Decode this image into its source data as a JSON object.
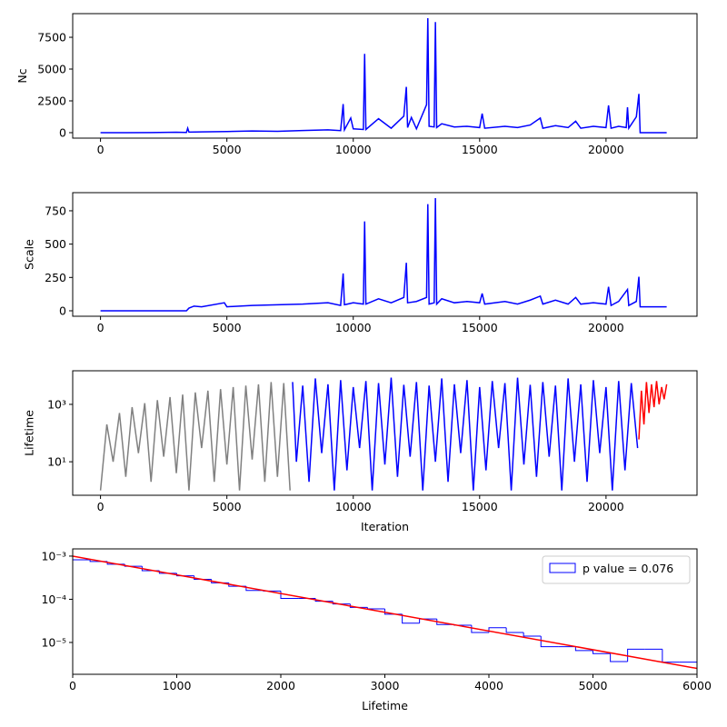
{
  "chart_data": [
    {
      "type": "line",
      "ylabel": "Nc",
      "xlim": [
        -1100,
        23600
      ],
      "ylim": [
        -430,
        9360
      ],
      "xticks": [
        0,
        5000,
        10000,
        15000,
        20000
      ],
      "yticks": [
        0,
        2500,
        5000,
        7500
      ],
      "series": [
        {
          "color": "#0000ff",
          "x": [
            0,
            1000,
            2000,
            3000,
            3400,
            3450,
            3500,
            4000,
            5000,
            6000,
            7000,
            8000,
            9000,
            9500,
            9600,
            9650,
            9900,
            10000,
            10400,
            10450,
            10500,
            11000,
            11500,
            12000,
            12100,
            12150,
            12300,
            12500,
            12900,
            12950,
            13000,
            13200,
            13250,
            13300,
            13500,
            14000,
            14500,
            15000,
            15100,
            15200,
            16000,
            16500,
            17000,
            17400,
            17500,
            18000,
            18500,
            18800,
            19000,
            19500,
            20000,
            20100,
            20200,
            20500,
            20800,
            20850,
            20900,
            21200,
            21300,
            21350,
            22400
          ],
          "values": [
            0,
            0,
            10,
            30,
            20,
            350,
            40,
            60,
            90,
            130,
            110,
            170,
            220,
            160,
            2250,
            220,
            1150,
            300,
            250,
            6200,
            250,
            1100,
            350,
            1300,
            3600,
            400,
            1200,
            300,
            2200,
            9000,
            500,
            450,
            8700,
            400,
            700,
            450,
            500,
            400,
            1500,
            350,
            500,
            400,
            600,
            1150,
            350,
            550,
            400,
            900,
            350,
            500,
            400,
            2150,
            350,
            500,
            400,
            2000,
            350,
            1250,
            3050,
            0,
            0
          ]
        }
      ]
    },
    {
      "type": "line",
      "ylabel": "Scale",
      "xlim": [
        -1100,
        23600
      ],
      "ylim": [
        -41,
        886
      ],
      "xticks": [
        0,
        5000,
        10000,
        15000,
        20000
      ],
      "yticks": [
        0,
        250,
        500,
        750
      ],
      "series": [
        {
          "color": "#0000ff",
          "x": [
            0,
            3400,
            3500,
            3700,
            4000,
            4900,
            5000,
            6000,
            7000,
            8000,
            9000,
            9500,
            9600,
            9650,
            10000,
            10400,
            10450,
            10500,
            11000,
            11500,
            12000,
            12100,
            12150,
            12500,
            12900,
            12950,
            13000,
            13200,
            13250,
            13300,
            13500,
            14000,
            14500,
            15000,
            15100,
            15200,
            16000,
            16500,
            17000,
            17400,
            17500,
            18000,
            18500,
            18800,
            19000,
            19500,
            20000,
            20100,
            20200,
            20500,
            20850,
            20900,
            21200,
            21300,
            21350,
            22400
          ],
          "values": [
            0,
            0,
            20,
            35,
            30,
            60,
            30,
            40,
            45,
            50,
            60,
            40,
            280,
            45,
            60,
            50,
            670,
            50,
            90,
            60,
            100,
            360,
            60,
            70,
            100,
            800,
            50,
            60,
            845,
            50,
            90,
            60,
            70,
            60,
            130,
            50,
            70,
            50,
            80,
            110,
            50,
            80,
            50,
            100,
            50,
            60,
            50,
            180,
            40,
            70,
            160,
            40,
            70,
            255,
            30,
            30
          ]
        }
      ]
    },
    {
      "type": "line",
      "xlabel": "Iteration",
      "ylabel": "Lifetime",
      "yscale": "log",
      "xlim": [
        -1100,
        23600
      ],
      "ylim": [
        0.68,
        14800
      ],
      "xticks": [
        0,
        5000,
        10000,
        15000,
        20000
      ],
      "yticks": [
        {
          "value": 10,
          "label": "10¹"
        },
        {
          "value": 1000,
          "label": "10³"
        }
      ],
      "series": [
        {
          "color": "#808080",
          "x": [
            0,
            250,
            500,
            750,
            1000,
            1250,
            1500,
            1750,
            2000,
            2250,
            2500,
            2750,
            3000,
            3250,
            3500,
            3750,
            4000,
            4250,
            4500,
            4750,
            5000,
            5250,
            5500,
            5750,
            6000,
            6250,
            6500,
            6750,
            7000,
            7250,
            7500
          ],
          "values": [
            1,
            200,
            10,
            500,
            3,
            800,
            20,
            1100,
            2,
            1400,
            15,
            1800,
            4,
            2200,
            1,
            2600,
            30,
            3000,
            2,
            3400,
            8,
            4000,
            1,
            4500,
            12,
            5000,
            2,
            6000,
            3,
            5500,
            1
          ]
        },
        {
          "color": "#0000ff",
          "x": [
            7600,
            7750,
            8000,
            8250,
            8500,
            8750,
            9000,
            9250,
            9500,
            9750,
            10000,
            10250,
            10500,
            10750,
            11000,
            11250,
            11500,
            11750,
            12000,
            12250,
            12500,
            12750,
            13000,
            13250,
            13500,
            13750,
            14000,
            14250,
            14500,
            14750,
            15000,
            15250,
            15500,
            15750,
            16000,
            16250,
            16500,
            16750,
            17000,
            17250,
            17500,
            17750,
            18000,
            18250,
            18500,
            18750,
            19000,
            19250,
            19500,
            19750,
            20000,
            20250,
            20500,
            20750,
            21000,
            21250
          ],
          "values": [
            6000,
            10,
            4500,
            2,
            8000,
            20,
            5000,
            1,
            7000,
            5,
            4000,
            30,
            6500,
            1,
            5500,
            8,
            8500,
            3,
            4800,
            15,
            6000,
            1,
            4500,
            10,
            8000,
            2,
            5000,
            20,
            7000,
            1,
            4000,
            5,
            6500,
            30,
            5500,
            1,
            8500,
            8,
            4800,
            3,
            6000,
            15,
            4500,
            1,
            8000,
            10,
            5000,
            2,
            7000,
            20,
            4000,
            1,
            6500,
            5,
            5500,
            30
          ]
        },
        {
          "color": "#ff0000",
          "x": [
            21300,
            21400,
            21500,
            21600,
            21700,
            21800,
            21900,
            22000,
            22100,
            22200,
            22300,
            22400
          ],
          "values": [
            60,
            3000,
            200,
            6000,
            500,
            5000,
            800,
            6500,
            1000,
            4000,
            1500,
            5000
          ]
        }
      ]
    },
    {
      "type": "histogram",
      "xlabel": "Lifetime",
      "yscale": "log",
      "xlim": [
        0,
        6000
      ],
      "ylim": [
        1.83e-06,
        0.00147
      ],
      "xticks": [
        0,
        1000,
        2000,
        3000,
        4000,
        5000,
        6000
      ],
      "yticks": [
        {
          "value": 1e-05,
          "label": "10⁻⁵"
        },
        {
          "value": 0.0001,
          "label": "10⁻⁴"
        },
        {
          "value": 0.001,
          "label": "10⁻³"
        }
      ],
      "legend": "upper right",
      "series": [
        {
          "name": "p value = 0.076",
          "color": "#0000ff",
          "bins": [
            0,
            167,
            333,
            500,
            667,
            833,
            1000,
            1167,
            1333,
            1500,
            1667,
            1833,
            2000,
            2167,
            2333,
            2500,
            2667,
            2833,
            3000,
            3167,
            3333,
            3500,
            3667,
            3833,
            4000,
            4167,
            4333,
            4500,
            4667,
            4833,
            5000,
            5167,
            5333,
            5500,
            5667,
            5833,
            6000
          ],
          "values": [
            0.00082,
            0.00075,
            0.00065,
            0.00058,
            0.00046,
            0.0004,
            0.00035,
            0.00029,
            0.00024,
            0.0002,
            0.00016,
            0.000155,
            0.000105,
            0.000105,
            9e-05,
            7.8e-05,
            6.5e-05,
            6e-05,
            4.5e-05,
            2.8e-05,
            3.5e-05,
            2.6e-05,
            2.5e-05,
            1.7e-05,
            2.2e-05,
            1.7e-05,
            1.4e-05,
            8e-06,
            8e-06,
            6.5e-06,
            5.5e-06,
            3.6e-06,
            7e-06,
            7e-06,
            3.5e-06,
            3.5e-06
          ]
        }
      ],
      "fit": {
        "color": "#ff0000",
        "x": [
          0,
          6000
        ],
        "values": [
          0.001,
          2.5e-06
        ]
      }
    }
  ]
}
